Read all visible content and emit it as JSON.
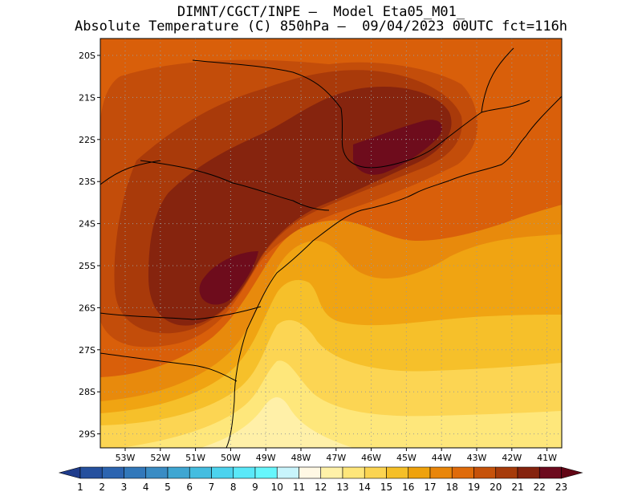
{
  "header": {
    "line1": "DIMNT/CGCT/INPE –  Model Eta05_M01_",
    "line2": "Absolute Temperature (C) 850hPa –  09/04/2023 00UTC fct=116h"
  },
  "axes": {
    "lat_labels": [
      "20S",
      "21S",
      "22S",
      "23S",
      "24S",
      "25S",
      "26S",
      "27S",
      "28S",
      "29S"
    ],
    "lon_labels": [
      "53W",
      "52W",
      "51W",
      "50W",
      "49W",
      "48W",
      "47W",
      "46W",
      "45W",
      "44W",
      "43W",
      "42W",
      "41W"
    ]
  },
  "colorbar": {
    "labels": [
      "1",
      "2",
      "3",
      "4",
      "5",
      "6",
      "7",
      "8",
      "9",
      "10",
      "11",
      "12",
      "13",
      "14",
      "15",
      "16",
      "17",
      "18",
      "19",
      "20",
      "21",
      "22",
      "23"
    ],
    "colors": [
      "#1f3c8c",
      "#25509e",
      "#2c64b0",
      "#3278ba",
      "#3a8cc4",
      "#3fa6d2",
      "#44bde0",
      "#4cd3ee",
      "#5ae8f8",
      "#66f6fc",
      "#c8f4fc",
      "#fff8e4",
      "#fff1a8",
      "#fee67a",
      "#fbd451",
      "#f5bf27",
      "#efa20c",
      "#e9860a",
      "#df6b0a",
      "#c6520a",
      "#a63b0a",
      "#85230e",
      "#6c0a1e",
      "#620515"
    ]
  }
}
